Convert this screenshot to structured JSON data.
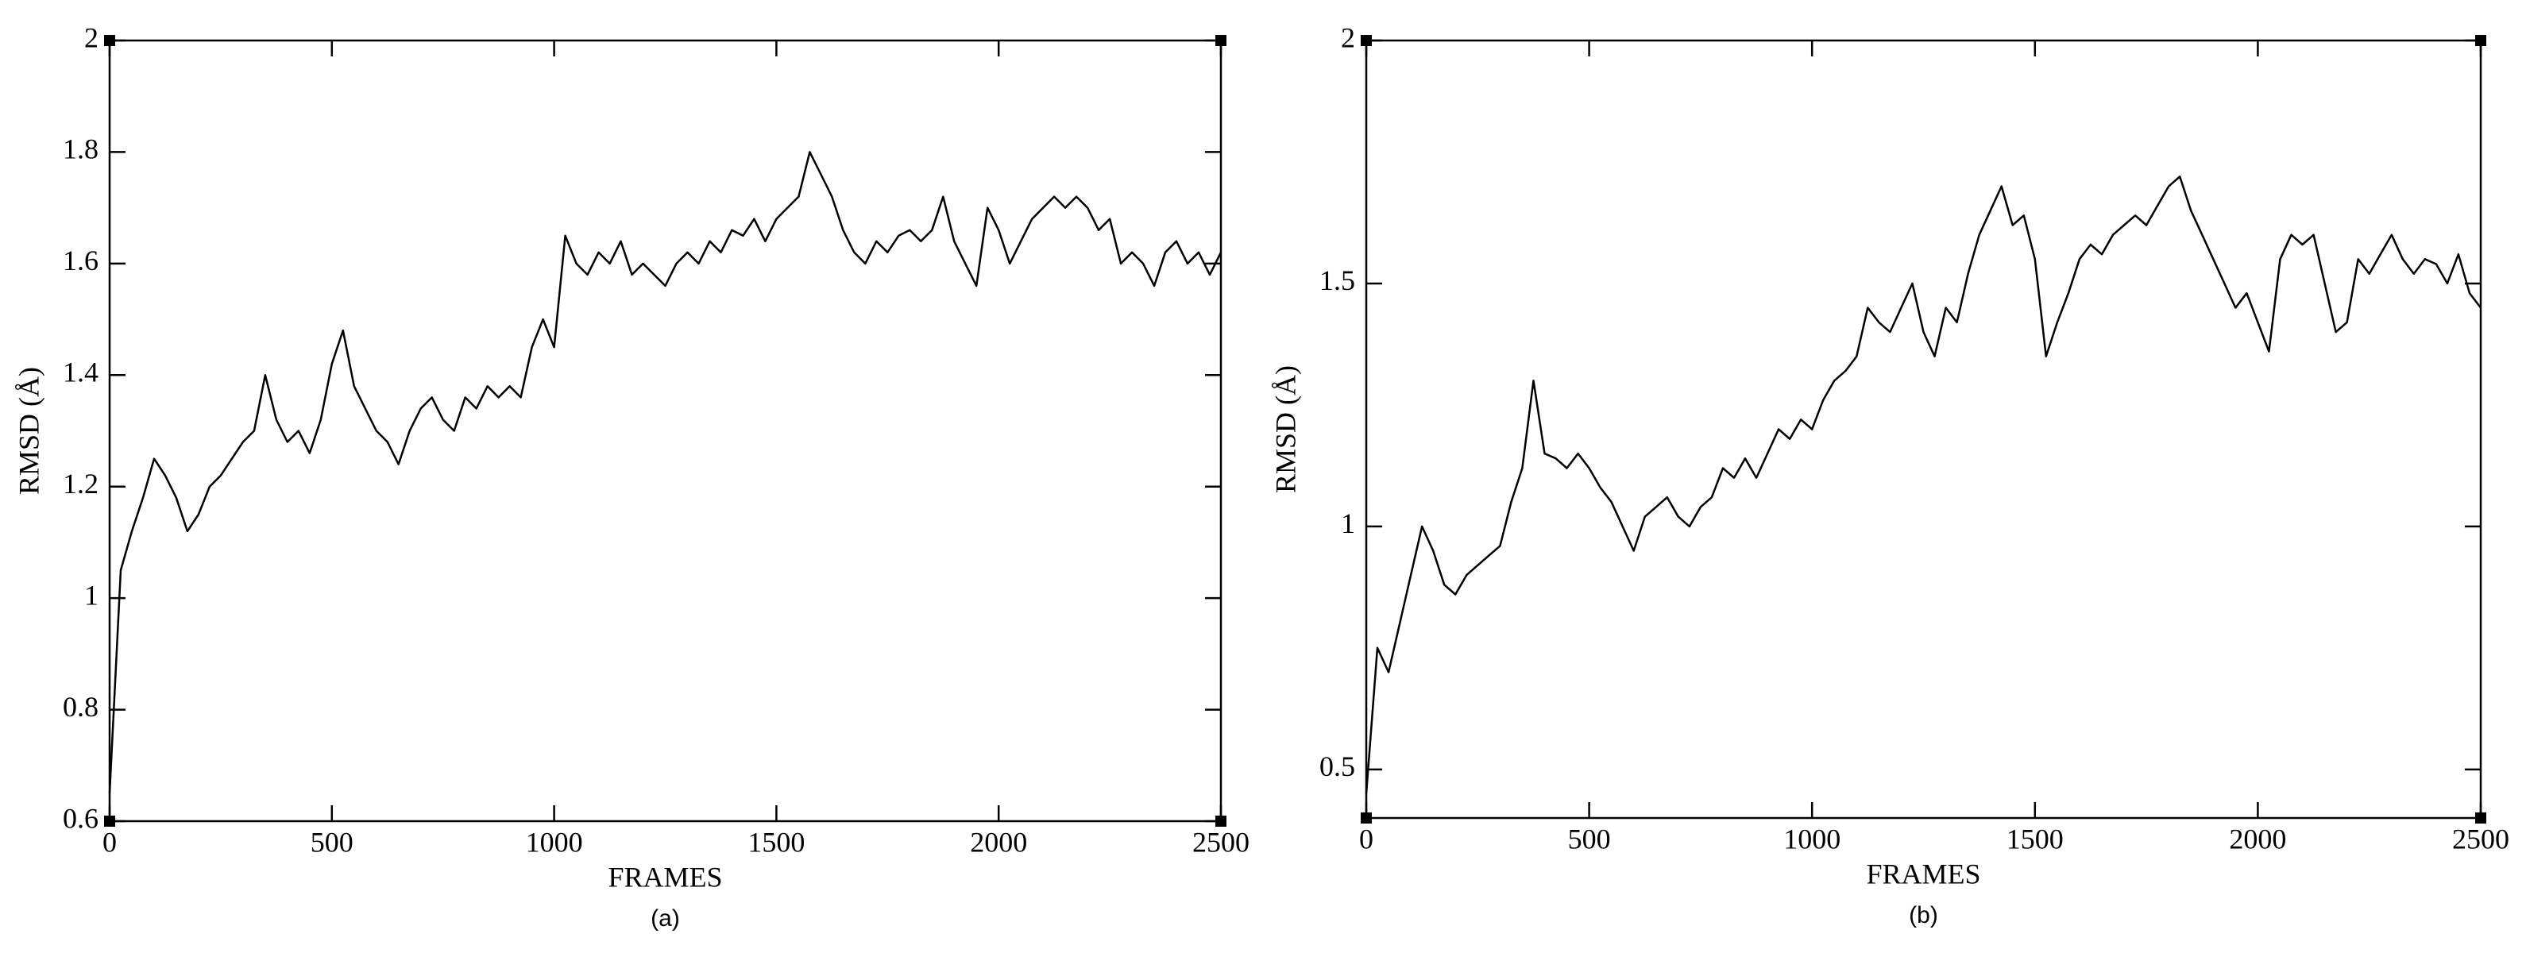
{
  "chart_data": [
    {
      "type": "line",
      "x_label": "FRAMES",
      "y_label": "RMSD (Å)",
      "caption": "(a)",
      "xlim": [
        0,
        2500
      ],
      "xticks": [
        0,
        500,
        1000,
        1500,
        2000,
        2500
      ],
      "ylim": [
        0.6,
        2
      ],
      "yticks": [
        0.6,
        0.8,
        1,
        1.2,
        1.4,
        1.6,
        1.8,
        2
      ],
      "x": [
        0,
        25,
        50,
        75,
        100,
        125,
        150,
        175,
        200,
        225,
        250,
        275,
        300,
        325,
        350,
        375,
        400,
        425,
        450,
        475,
        500,
        525,
        550,
        575,
        600,
        625,
        650,
        675,
        700,
        725,
        750,
        775,
        800,
        825,
        850,
        875,
        900,
        925,
        950,
        975,
        1000,
        1025,
        1050,
        1075,
        1100,
        1125,
        1150,
        1175,
        1200,
        1225,
        1250,
        1275,
        1300,
        1325,
        1350,
        1375,
        1400,
        1425,
        1450,
        1475,
        1500,
        1525,
        1550,
        1575,
        1600,
        1625,
        1650,
        1675,
        1700,
        1725,
        1750,
        1775,
        1800,
        1825,
        1850,
        1875,
        1900,
        1925,
        1950,
        1975,
        2000,
        2025,
        2050,
        2075,
        2100,
        2125,
        2150,
        2175,
        2200,
        2225,
        2250,
        2275,
        2300,
        2325,
        2350,
        2375,
        2400,
        2425,
        2450,
        2475,
        2500
      ],
      "series": [
        {
          "color": "#000000",
          "values": [
            0.65,
            1.05,
            1.12,
            1.18,
            1.25,
            1.22,
            1.18,
            1.12,
            1.15,
            1.2,
            1.22,
            1.25,
            1.28,
            1.3,
            1.4,
            1.32,
            1.28,
            1.3,
            1.26,
            1.32,
            1.42,
            1.48,
            1.38,
            1.34,
            1.3,
            1.28,
            1.24,
            1.3,
            1.34,
            1.36,
            1.32,
            1.3,
            1.36,
            1.34,
            1.38,
            1.36,
            1.38,
            1.36,
            1.45,
            1.5,
            1.45,
            1.65,
            1.6,
            1.58,
            1.62,
            1.6,
            1.64,
            1.58,
            1.6,
            1.58,
            1.56,
            1.6,
            1.62,
            1.6,
            1.64,
            1.62,
            1.66,
            1.65,
            1.68,
            1.64,
            1.68,
            1.7,
            1.72,
            1.8,
            1.76,
            1.72,
            1.66,
            1.62,
            1.6,
            1.64,
            1.62,
            1.65,
            1.66,
            1.64,
            1.66,
            1.72,
            1.64,
            1.6,
            1.56,
            1.7,
            1.66,
            1.6,
            1.64,
            1.68,
            1.7,
            1.72,
            1.7,
            1.72,
            1.7,
            1.66,
            1.68,
            1.6,
            1.62,
            1.6,
            1.56,
            1.62,
            1.64,
            1.6,
            1.62,
            1.58,
            1.62
          ]
        }
      ]
    },
    {
      "type": "line",
      "x_label": "FRAMES",
      "y_label": "RMSD (Å)",
      "caption": "(b)",
      "xlim": [
        0,
        2500
      ],
      "xticks": [
        0,
        500,
        1000,
        1500,
        2000,
        2500
      ],
      "ylim": [
        0.4,
        2
      ],
      "yticks": [
        0.5,
        1,
        1.5,
        2
      ],
      "x": [
        0,
        25,
        50,
        75,
        100,
        125,
        150,
        175,
        200,
        225,
        250,
        275,
        300,
        325,
        350,
        375,
        400,
        425,
        450,
        475,
        500,
        525,
        550,
        575,
        600,
        625,
        650,
        675,
        700,
        725,
        750,
        775,
        800,
        825,
        850,
        875,
        900,
        925,
        950,
        975,
        1000,
        1025,
        1050,
        1075,
        1100,
        1125,
        1150,
        1175,
        1200,
        1225,
        1250,
        1275,
        1300,
        1325,
        1350,
        1375,
        1400,
        1425,
        1450,
        1475,
        1500,
        1525,
        1550,
        1575,
        1600,
        1625,
        1650,
        1675,
        1700,
        1725,
        1750,
        1775,
        1800,
        1825,
        1850,
        1875,
        1900,
        1925,
        1950,
        1975,
        2000,
        2025,
        2050,
        2075,
        2100,
        2125,
        2150,
        2175,
        2200,
        2225,
        2250,
        2275,
        2300,
        2325,
        2350,
        2375,
        2400,
        2425,
        2450,
        2475,
        2500
      ],
      "series": [
        {
          "color": "#000000",
          "values": [
            0.45,
            0.75,
            0.7,
            0.8,
            0.9,
            1.0,
            0.95,
            0.88,
            0.86,
            0.9,
            0.92,
            0.94,
            0.96,
            1.05,
            1.12,
            1.3,
            1.15,
            1.14,
            1.12,
            1.15,
            1.12,
            1.08,
            1.05,
            1.0,
            0.95,
            1.02,
            1.04,
            1.06,
            1.02,
            1.0,
            1.04,
            1.06,
            1.12,
            1.1,
            1.14,
            1.1,
            1.15,
            1.2,
            1.18,
            1.22,
            1.2,
            1.26,
            1.3,
            1.32,
            1.35,
            1.45,
            1.42,
            1.4,
            1.45,
            1.5,
            1.4,
            1.35,
            1.45,
            1.42,
            1.52,
            1.6,
            1.65,
            1.7,
            1.62,
            1.64,
            1.55,
            1.35,
            1.42,
            1.48,
            1.55,
            1.58,
            1.56,
            1.6,
            1.62,
            1.64,
            1.62,
            1.66,
            1.7,
            1.72,
            1.65,
            1.6,
            1.55,
            1.5,
            1.45,
            1.48,
            1.42,
            1.36,
            1.55,
            1.6,
            1.58,
            1.6,
            1.5,
            1.4,
            1.42,
            1.55,
            1.52,
            1.56,
            1.6,
            1.55,
            1.52,
            1.55,
            1.54,
            1.5,
            1.56,
            1.48,
            1.45
          ]
        }
      ]
    }
  ]
}
